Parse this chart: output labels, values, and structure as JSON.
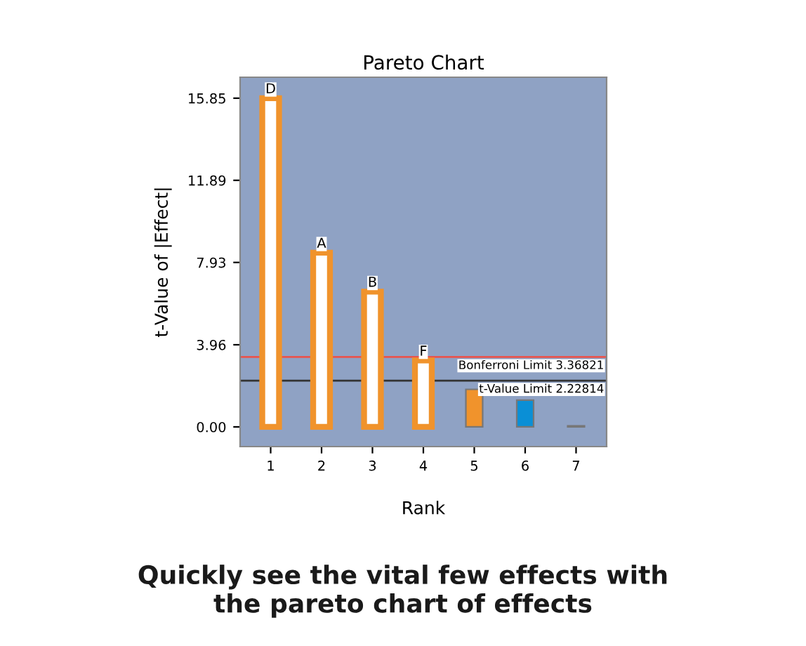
{
  "chart_data": {
    "type": "bar",
    "title": "Pareto Chart",
    "xlabel": "Rank",
    "ylabel": "t-Value of |Effect|",
    "categories": [
      "1",
      "2",
      "3",
      "4",
      "5",
      "6",
      "7"
    ],
    "values": [
      15.85,
      8.4,
      6.52,
      3.2,
      1.81,
      1.29,
      0.05
    ],
    "colors": [
      "#ffffff",
      "#ffffff",
      "#ffffff",
      "#ffffff",
      "#f0932c",
      "#0a8fd6",
      "#f0932c"
    ],
    "ylim": [
      -0.95,
      16.86
    ],
    "yticks": [
      {
        "value": 0,
        "label": "0.00"
      },
      {
        "value": 3.96,
        "label": "3.96"
      },
      {
        "value": 7.93,
        "label": "7.93"
      },
      {
        "value": 11.89,
        "label": "11.89"
      },
      {
        "value": 15.85,
        "label": "15.85"
      }
    ],
    "grid": false,
    "ref_lines": [
      {
        "axis": "y",
        "value": 3.36821,
        "label": "Bonferroni Limit 3.36821",
        "color": "#e8544f"
      },
      {
        "axis": "y",
        "value": 2.22814,
        "label": "t-Value Limit 2.22814",
        "color": "#333333"
      }
    ],
    "annotations": [
      {
        "text": "D",
        "x": "1",
        "y": 15.85
      },
      {
        "text": "A",
        "x": "2",
        "y": 8.4
      },
      {
        "text": "B",
        "x": "3",
        "y": 6.52
      },
      {
        "text": "F",
        "x": "4",
        "y": 3.2
      },
      "Quickly see the vital few effects with\nthe pareto chart of effects"
    ]
  }
}
